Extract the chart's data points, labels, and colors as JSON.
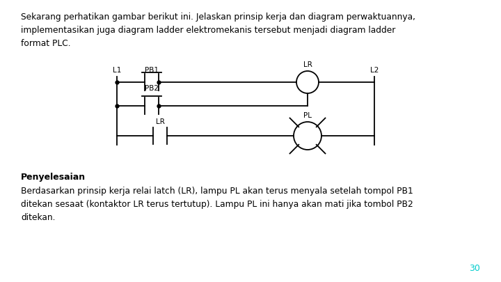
{
  "title_line1": "Sekarang perhatikan gambar berikut ini. Jelaskan prinsip kerja dan diagram perwaktuannya,",
  "title_line2": "implementasikan juga diagram ladder elektromekanis tersebut menjadi diagram ladder",
  "title_line3": "format PLC.",
  "penyelesaian_bold": "Penyelesaian",
  "body_line1": "Berdasarkan prinsip kerja relai latch (LR), lampu PL akan terus menyala setelah tompol PB1",
  "body_line2": "ditekan sesaat (kontaktor LR terus tertutup). Lampu PL ini hanya akan mati jika tombol PB2",
  "body_line3": "ditekan.",
  "page_number": "30",
  "bg_color": "#ffffff",
  "text_color": "#000000",
  "diagram_color": "#000000",
  "page_color": "#00cccc"
}
